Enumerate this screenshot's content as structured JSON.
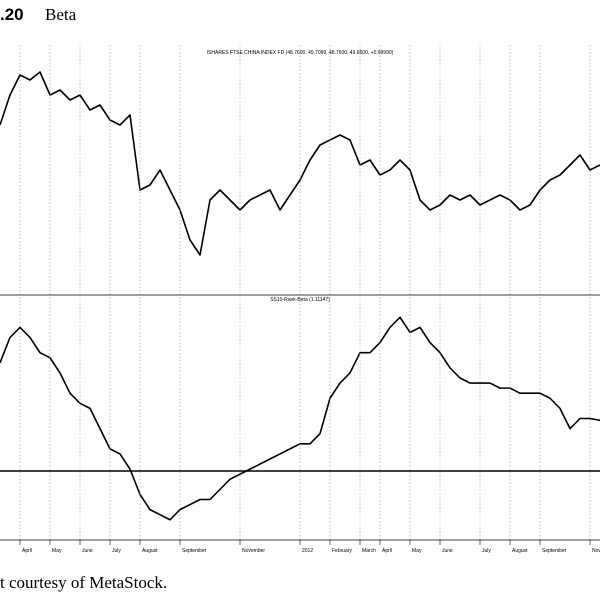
{
  "header": {
    "figure": ".20",
    "title": "Beta"
  },
  "caption": "t courtesy of MetaStock.",
  "chart_data": [
    {
      "type": "line",
      "title": "ISHARES FTSE CHINA INDEX FD (48.7600, 49.7099, 48.7600, 49.6500, +0.99990)",
      "color": "#000000",
      "ylim": [
        35.76,
        60.76
      ],
      "values": [
        52.76,
        55.76,
        57.76,
        57.26,
        58.06,
        55.76,
        56.26,
        55.26,
        55.76,
        54.26,
        54.76,
        53.26,
        52.76,
        53.76,
        46.26,
        46.76,
        48.26,
        46.26,
        44.26,
        41.26,
        39.76,
        45.26,
        46.26,
        45.26,
        44.26,
        45.26,
        45.76,
        46.26,
        44.26,
        45.76,
        47.26,
        49.26,
        50.76,
        51.26,
        51.76,
        51.26,
        48.76,
        49.26,
        47.76,
        48.26,
        49.26,
        48.26,
        45.26,
        44.26,
        44.76,
        45.76,
        45.26,
        45.76,
        44.76,
        45.26,
        45.76,
        45.26,
        44.26,
        44.76,
        46.26,
        47.26,
        47.76,
        48.76,
        49.76,
        48.26,
        48.76
      ]
    },
    {
      "type": "line",
      "title": "SS10-Rank-Beta (1.11147)",
      "color": "#000000",
      "ylim": [
        0.85,
        1.378
      ],
      "hline": 1,
      "categories": [
        null,
        null,
        "April",
        null,
        null,
        "May",
        null,
        null,
        "June",
        null,
        null,
        "July",
        null,
        null,
        "August",
        null,
        null,
        null,
        "September",
        null,
        null,
        null,
        null,
        null,
        "November",
        null,
        null,
        null,
        null,
        null,
        "2012",
        null,
        null,
        "February",
        null,
        null,
        "March",
        null,
        "April",
        null,
        null,
        "May",
        null,
        null,
        "June",
        null,
        null,
        null,
        "July",
        null,
        null,
        "August",
        null,
        null,
        "September",
        null,
        null,
        null,
        null,
        "November",
        null
      ],
      "values": [
        1.235,
        1.29,
        1.312,
        1.29,
        1.257,
        1.246,
        1.213,
        1.169,
        1.147,
        1.136,
        1.092,
        1.048,
        1.037,
        1.004,
        0.949,
        0.916,
        0.905,
        0.894,
        0.916,
        0.927,
        0.938,
        0.938,
        0.96,
        0.982,
        0.993,
        1.004,
        1.015,
        1.026,
        1.037,
        1.048,
        1.059,
        1.059,
        1.081,
        1.158,
        1.191,
        1.213,
        1.257,
        1.257,
        1.279,
        1.312,
        1.334,
        1.301,
        1.312,
        1.279,
        1.257,
        1.224,
        1.202,
        1.191,
        1.191,
        1.191,
        1.18,
        1.18,
        1.169,
        1.169,
        1.169,
        1.158,
        1.136,
        1.092,
        1.114,
        1.114,
        1.11
      ]
    }
  ]
}
